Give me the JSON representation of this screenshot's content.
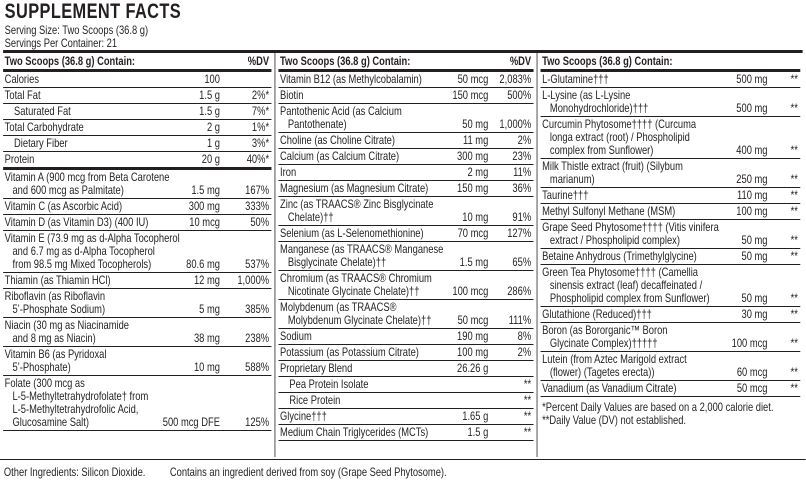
{
  "header": {
    "title": "SUPPLEMENT FACTS",
    "serving_size": "Serving Size: Two Scoops (36.8 g)",
    "servings_per_container": "Servings Per Container: 21"
  },
  "columns": [
    {
      "heading": "Two Scoops (36.8 g) Contain:",
      "dv_heading": "%DV",
      "rows": [
        {
          "name": "Calories",
          "amount": "100"
        },
        {
          "name": "Total Fat",
          "amount": "1.5 g",
          "dv": "2%*"
        },
        {
          "name": "Saturated Fat",
          "amount": "1.5 g",
          "dv": "7%*"
        },
        {
          "name": "Total Carbohydrate",
          "amount": "2 g",
          "dv": "1%*"
        },
        {
          "name": "Dietary Fiber",
          "amount": "1 g",
          "dv": "3%*"
        },
        {
          "name": "Protein",
          "amount": "20 g",
          "dv": "40%*"
        },
        {
          "name": "Vitamin A (900 mcg from Beta Carotene\nand 600 mcg as Palmitate)",
          "amount": "1.5 mg",
          "dv": "167%"
        },
        {
          "name": "Vitamin C (as Ascorbic Acid)",
          "amount": "300 mg",
          "dv": "333%"
        },
        {
          "name": "Vitamin D (as Vitamin D3) (400 IU)",
          "amount": "10 mcg",
          "dv": "50%"
        },
        {
          "name": "Vitamin E (73.9 mg as d-Alpha Tocopherol\nand 6.7 mg as d-Alpha Tocopherol\nfrom 98.5 mg Mixed Tocopherols)",
          "amount": "80.6 mg",
          "dv": "537%"
        },
        {
          "name": "Thiamin (as Thiamin HCl)",
          "amount": "12 mg",
          "dv": "1,000%"
        },
        {
          "name": "Riboflavin (as Riboflavin\n5’-Phosphate Sodium)",
          "amount": "5 mg",
          "dv": "385%"
        },
        {
          "name": "Niacin (30 mg as Niacinamide\nand 8 mg as Niacin)",
          "amount": "38 mg",
          "dv": "238%"
        },
        {
          "name": "Vitamin B6 (as Pyridoxal\n5’-Phosphate)",
          "amount": "10 mg",
          "dv": "588%"
        },
        {
          "name": "Folate (300 mcg as\nL-5-Methyltetrahydrofolate† from\nL-5-Methyltetrahydrofolic Acid,\nGlucosamine Salt)",
          "amount": "500 mcg DFE",
          "dv": "125%"
        }
      ]
    },
    {
      "heading": "Two Scoops (36.8 g) Contain:",
      "dv_heading": "%DV",
      "rows": [
        {
          "name": "Vitamin B12 (as Methylcobalamin)",
          "amount": "50 mcg",
          "dv": "2,083%"
        },
        {
          "name": "Biotin",
          "amount": "150 mcg",
          "dv": "500%"
        },
        {
          "name": "Pantothenic Acid (as Calcium\nPantothenate)",
          "amount": "50 mg",
          "dv": "1,000%"
        },
        {
          "name": "Choline (as Choline Citrate)",
          "amount": "11 mg",
          "dv": "2%"
        },
        {
          "name": "Calcium (as Calcium Citrate)",
          "amount": "300 mg",
          "dv": "23%"
        },
        {
          "name": "Iron",
          "amount": "2 mg",
          "dv": "11%"
        },
        {
          "name": "Magnesium (as Magnesium Citrate)",
          "amount": "150 mg",
          "dv": "36%"
        },
        {
          "name": "Zinc (as TRAACS® Zinc Bisglycinate\nChelate)††",
          "amount": "10 mg",
          "dv": "91%"
        },
        {
          "name": "Selenium (as L-Selenomethionine)",
          "amount": "70 mcg",
          "dv": "127%"
        },
        {
          "name": "Manganese (as TRAACS® Manganese\nBisglycinate Chelate)††",
          "amount": "1.5 mg",
          "dv": "65%"
        },
        {
          "name": "Chromium (as TRAACS® Chromium\nNicotinate Glycinate Chelate)††",
          "amount": "100 mcg",
          "dv": "286%"
        },
        {
          "name": "Molybdenum (as TRAACS®\nMolybdenum Glycinate Chelate)††",
          "amount": "50 mcg",
          "dv": "111%"
        },
        {
          "name": "Sodium",
          "amount": "190 mg",
          "dv": "8%"
        },
        {
          "name": "Potassium (as Potassium Citrate)",
          "amount": "100 mg",
          "dv": "2%"
        },
        {
          "name": "Proprietary Blend",
          "amount": "26.26 g"
        },
        {
          "name": "Pea Protein Isolate",
          "dv": "**"
        },
        {
          "name": "Rice Protein",
          "dv": "**"
        },
        {
          "name": "Glycine†††",
          "amount": "1.65 g",
          "dv": "**"
        },
        {
          "name": "Medium Chain Triglycerides (MCTs)",
          "amount": "1.5 g",
          "dv": "**"
        }
      ]
    },
    {
      "heading": "Two Scoops (36.8 g) Contain:",
      "rows": [
        {
          "name": "L-Glutamine†††",
          "amount": "500 mg",
          "dv": "**"
        },
        {
          "name": "L-Lysine (as L-Lysine\nMonohydrochloride)†††",
          "amount": "500 mg",
          "dv": "**"
        },
        {
          "name": "Curcumin Phytosome†††† (Curcuma\nlonga extract (root) / Phospholipid\ncomplex from Sunflower)",
          "amount": "400 mg",
          "dv": "**"
        },
        {
          "name": "Milk Thistle extract (fruit) (Silybum\nmarianum)",
          "amount": "250 mg",
          "dv": "**"
        },
        {
          "name": "Taurine†††",
          "amount": "110 mg",
          "dv": "**"
        },
        {
          "name": "Methyl Sulfonyl Methane (MSM)",
          "amount": "100 mg",
          "dv": "**"
        },
        {
          "name": "Grape Seed Phytosome†††† (Vitis vinifera\nextract / Phospholipid complex)",
          "amount": "50 mg",
          "dv": "**"
        },
        {
          "name": "Betaine Anhydrous (Trimethylglycine)",
          "amount": "50 mg",
          "dv": "**"
        },
        {
          "name": "Green Tea Phytosome†††† (Camellia\nsinensis extract (leaf) decaffeinated /\nPhospholipid complex from Sunflower)",
          "amount": "50 mg",
          "dv": "**"
        },
        {
          "name": "Glutathione (Reduced)†††",
          "amount": "30 mg",
          "dv": "**"
        },
        {
          "name": "Boron (as Bororganic™ Boron\nGlycinate Complex)†††††",
          "amount": "100 mcg",
          "dv": "**"
        },
        {
          "name": "Lutein (from Aztec Marigold extract\n(flower) (Tagetes erecta))",
          "amount": "60 mcg",
          "dv": "**"
        },
        {
          "name": "Vanadium (as Vanadium Citrate)",
          "amount": "50 mcg",
          "dv": "**"
        }
      ]
    }
  ],
  "footnotes": [
    "*Percent Daily Values are based on a 2,000 calorie diet.",
    "**Daily Value (DV) not established."
  ],
  "footer": {
    "other_ingredients": "Other Ingredients: Silicon Dioxide.",
    "soy_note": "Contains an ingredient derived from soy (Grape Seed Phytosome)."
  }
}
